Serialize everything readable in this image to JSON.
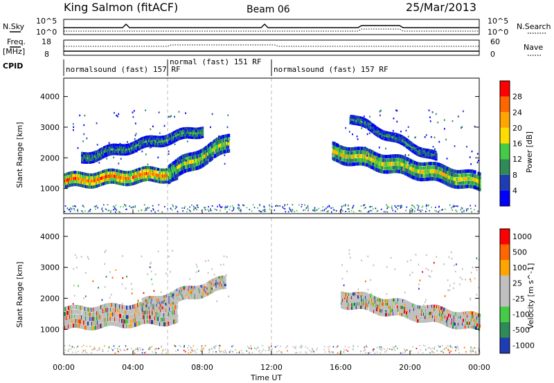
{
  "header": {
    "station": "King Salmon (fitACF)",
    "beam": "Beam 06",
    "date": "25/Mar/2013"
  },
  "top_panels": {
    "nsky_label": "N.Sky",
    "nsky_ticks": [
      "10^5",
      "10^0"
    ],
    "nsearch_label": "N.Search",
    "nsearch_ticks": [
      "10^5",
      "10^0"
    ],
    "freq_label": "Freq.",
    "freq_unit": "[MHz]",
    "freq_ticks": [
      "18",
      "8"
    ],
    "nave_label": "Nave",
    "nave_ticks": [
      "60",
      "0"
    ],
    "cpid_label": "CPID",
    "cpid_segments": [
      {
        "label": "normalsound (fast) 157 RF",
        "start_hour": 0,
        "end_hour": 6
      },
      {
        "label": "normal (fast) 151 RF",
        "start_hour": 6,
        "end_hour": 12
      },
      {
        "label": "normalsound (fast) 157 RF",
        "start_hour": 12,
        "end_hour": 24
      }
    ]
  },
  "chart_data": [
    {
      "type": "heatmap",
      "panel": "power",
      "ylabel": "Slant Range [km]",
      "xlabel": "",
      "x_range_hours": [
        0,
        24
      ],
      "ylim": [
        180,
        4600
      ],
      "yticks": [
        "1000",
        "2000",
        "3000",
        "4000"
      ],
      "colorbar_label": "Power [dB]",
      "colorbar_ticks": [
        "4",
        "8",
        "12",
        "16",
        "20",
        "24",
        "28"
      ],
      "colorbar_range": [
        0,
        32
      ],
      "colors": [
        "#0000ff",
        "#1e3cb4",
        "#2e8b57",
        "#44cc44",
        "#ffdd00",
        "#ffa500",
        "#ff6600",
        "#ff0000"
      ],
      "bands": [
        {
          "start_hour": 0.0,
          "end_hour": 6.5,
          "center_start": 1250,
          "center_end": 1500,
          "thickness": 400,
          "level": 0.8
        },
        {
          "start_hour": 6.0,
          "end_hour": 9.5,
          "center_start": 1500,
          "center_end": 2500,
          "thickness": 500,
          "level": 0.5
        },
        {
          "start_hour": 1.0,
          "end_hour": 8.0,
          "center_start": 2000,
          "center_end": 2900,
          "thickness": 300,
          "level": 0.35
        },
        {
          "start_hour": 15.5,
          "end_hour": 24.0,
          "center_start": 2200,
          "center_end": 1200,
          "thickness": 500,
          "level": 0.55
        },
        {
          "start_hour": 16.5,
          "end_hour": 21.5,
          "center_start": 3300,
          "center_end": 2000,
          "thickness": 250,
          "level": 0.3
        }
      ]
    },
    {
      "type": "heatmap",
      "panel": "velocity",
      "ylabel": "Slant Range [km]",
      "xlabel": "Time UT",
      "x_range_hours": [
        0,
        24
      ],
      "xticks": [
        "00:00",
        "04:00",
        "08:00",
        "12:00",
        "16:00",
        "20:00",
        "00:00"
      ],
      "ylim": [
        180,
        4600
      ],
      "yticks": [
        "1000",
        "2000",
        "3000",
        "4000"
      ],
      "colorbar_label": "Velocity [m s^-1]",
      "colorbar_ticks": [
        "1000",
        "500",
        "100",
        "25",
        "-25",
        "-100",
        "-500",
        "-1000"
      ],
      "colors": [
        "#1e3cb4",
        "#2e8b57",
        "#44cc44",
        "#c0c0c0",
        "#c0c0c0",
        "#ffa500",
        "#ff6600",
        "#ff0000"
      ],
      "bands": [
        {
          "start_hour": 0.0,
          "end_hour": 6.5,
          "center_start": 1350,
          "center_end": 1550,
          "thickness": 600,
          "level": 0.5
        },
        {
          "start_hour": 4.5,
          "end_hour": 9.3,
          "center_start": 1750,
          "center_end": 2500,
          "thickness": 350,
          "level": 0.5
        },
        {
          "start_hour": 16.0,
          "end_hour": 24.0,
          "center_start": 2000,
          "center_end": 1200,
          "thickness": 450,
          "level": 0.5
        }
      ]
    }
  ]
}
